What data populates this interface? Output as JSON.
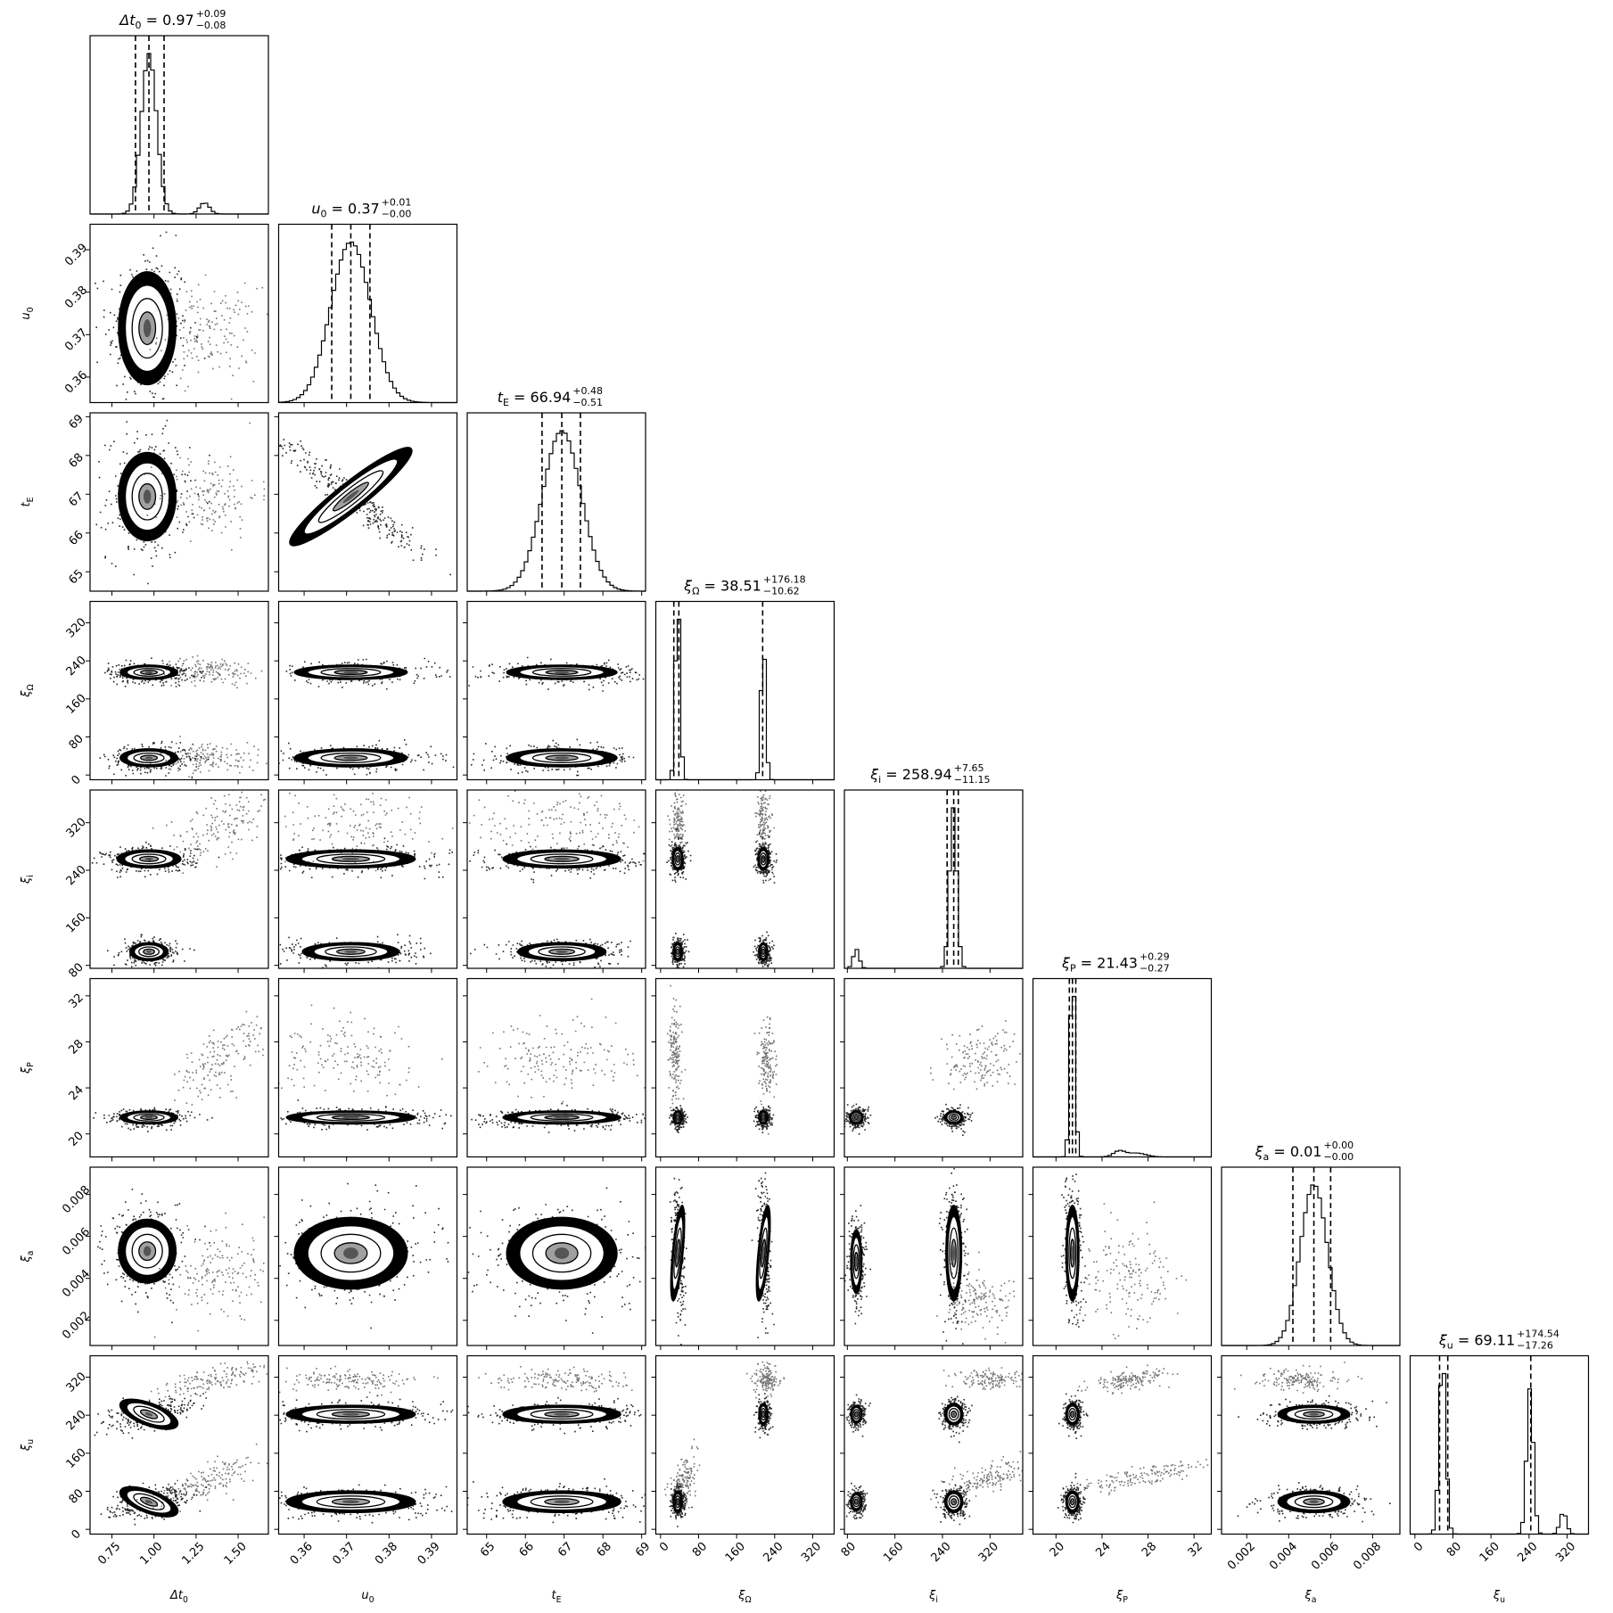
{
  "chart_data": {
    "type": "corner",
    "parameters": [
      {
        "id": "dt0",
        "label": "Δt₀",
        "range": [
          0.62,
          1.68
        ],
        "ticks": [
          0.75,
          1.0,
          1.25,
          1.5
        ],
        "tick_labels": [
          "0.75",
          "1.00",
          "1.25",
          "1.50"
        ],
        "title": {
          "name": "Δt₀",
          "value": "0.97",
          "plus": "+0.09",
          "minus": "−0.08"
        },
        "quantiles": [
          0.89,
          0.97,
          1.06
        ]
      },
      {
        "id": "u0",
        "label": "u₀",
        "range": [
          0.354,
          0.396
        ],
        "ticks": [
          0.36,
          0.37,
          0.38,
          0.39
        ],
        "tick_labels": [
          "0.36",
          "0.37",
          "0.38",
          "0.39"
        ],
        "title": {
          "name": "u₀",
          "value": "0.37",
          "plus": "+0.01",
          "minus": "−0.00"
        },
        "quantiles": [
          0.3665,
          0.371,
          0.3755
        ]
      },
      {
        "id": "tE",
        "label": "t_E",
        "range": [
          64.5,
          69.1
        ],
        "ticks": [
          65,
          66,
          67,
          68,
          69
        ],
        "tick_labels": [
          "65",
          "66",
          "67",
          "68",
          "69"
        ],
        "title": {
          "name": "t_E",
          "value": "66.94",
          "plus": "+0.48",
          "minus": "−0.51"
        },
        "quantiles": [
          66.43,
          66.94,
          67.42
        ]
      },
      {
        "id": "xiOmega",
        "label": "ξ_Ω",
        "range": [
          -10,
          365
        ],
        "ticks": [
          0,
          80,
          160,
          240,
          320
        ],
        "tick_labels": [
          "0",
          "80",
          "160",
          "240",
          "320"
        ],
        "title": {
          "name": "ξ_Ω",
          "value": "38.51",
          "plus": "+176.18",
          "minus": "−10.62"
        },
        "quantiles": [
          27.9,
          38.5,
          214.7
        ]
      },
      {
        "id": "xii",
        "label": "ξ_i",
        "range": [
          75,
          375
        ],
        "ticks": [
          80,
          160,
          240,
          320
        ],
        "tick_labels": [
          "80",
          "160",
          "240",
          "320"
        ],
        "title": {
          "name": "ξ_i",
          "value": "258.94",
          "plus": "+7.65",
          "minus": "−11.15"
        },
        "quantiles": [
          247.8,
          258.9,
          266.6
        ]
      },
      {
        "id": "xiP",
        "label": "ξ_P",
        "range": [
          18,
          33.5
        ],
        "ticks": [
          20,
          24,
          28,
          32
        ],
        "tick_labels": [
          "20",
          "24",
          "28",
          "32"
        ],
        "title": {
          "name": "ξ_P",
          "value": "21.43",
          "plus": "+0.29",
          "minus": "−0.27"
        },
        "quantiles": [
          21.16,
          21.43,
          21.72
        ]
      },
      {
        "id": "xia",
        "label": "ξ_a",
        "range": [
          0.0008,
          0.0093
        ],
        "ticks": [
          0.002,
          0.004,
          0.006,
          0.008
        ],
        "tick_labels": [
          "0.002",
          "0.004",
          "0.006",
          "0.008"
        ],
        "title": {
          "name": "ξ_a",
          "value": "0.01",
          "plus": "+0.00",
          "minus": "−0.00"
        },
        "quantiles": [
          0.0042,
          0.0052,
          0.006
        ]
      },
      {
        "id": "xiu",
        "label": "ξ_u",
        "range": [
          -10,
          365
        ],
        "ticks": [
          0,
          80,
          160,
          240,
          320
        ],
        "tick_labels": [
          "0",
          "80",
          "160",
          "240",
          "320"
        ],
        "title": {
          "name": "ξ_u",
          "value": "69.11",
          "plus": "+174.54",
          "minus": "−17.26"
        },
        "quantiles": [
          51.85,
          69.11,
          243.65
        ]
      }
    ],
    "histograms": [
      {
        "param": "dt0",
        "peaks": [
          [
            0.97,
            0.045,
            1.0
          ],
          [
            1.3,
            0.03,
            0.07
          ]
        ]
      },
      {
        "param": "u0",
        "peaks": [
          [
            0.371,
            0.0047,
            1.0
          ]
        ]
      },
      {
        "param": "tE",
        "peaks": [
          [
            66.94,
            0.5,
            1.0
          ]
        ]
      },
      {
        "param": "xiOmega",
        "peaks": [
          [
            36,
            5,
            1.0
          ],
          [
            216,
            5,
            0.75
          ]
        ]
      },
      {
        "param": "xii",
        "peaks": [
          [
            258,
            6,
            1.0
          ],
          [
            95,
            5,
            0.12
          ]
        ]
      },
      {
        "param": "xiP",
        "peaks": [
          [
            21.43,
            0.22,
            1.0
          ],
          [
            25.5,
            0.5,
            0.03
          ],
          [
            27,
            0.8,
            0.02
          ]
        ]
      },
      {
        "param": "xia",
        "peaks": [
          [
            0.0052,
            0.00065,
            1.0
          ]
        ]
      },
      {
        "param": "xiu",
        "peaks": [
          [
            58,
            7,
            0.98
          ],
          [
            242,
            7,
            0.8
          ],
          [
            312,
            7,
            0.12
          ]
        ]
      }
    ],
    "clusters": [
      {
        "pair": "u0|dt0",
        "items": [
          {
            "x": 0.96,
            "y": 0.3715,
            "sx": 0.09,
            "sy": 0.007,
            "rho": 0.0
          },
          {
            "x": 1.32,
            "y": 0.3705,
            "sx": 0.11,
            "sy": 0.004,
            "rho": 0.0,
            "tail": true
          }
        ]
      },
      {
        "pair": "tE|dt0",
        "items": [
          {
            "x": 0.96,
            "y": 66.94,
            "sx": 0.09,
            "sy": 0.6,
            "rho": 0.0
          },
          {
            "x": 1.32,
            "y": 67.0,
            "sx": 0.11,
            "sy": 0.4,
            "rho": 0.0,
            "tail": true
          }
        ]
      },
      {
        "pair": "tE|u0",
        "items": [
          {
            "x": 0.371,
            "y": 66.94,
            "sx": 0.0075,
            "sy": 0.65,
            "rho": -0.97
          }
        ]
      },
      {
        "pair": "xiOmega|dt0",
        "items": [
          {
            "x": 0.97,
            "y": 36,
            "sx": 0.09,
            "sy": 10,
            "rho": 0.0
          },
          {
            "x": 0.97,
            "y": 216,
            "sx": 0.09,
            "sy": 8,
            "rho": 0.0
          },
          {
            "x": 1.32,
            "y": 38,
            "sx": 0.11,
            "sy": 12,
            "rho": 0.0,
            "tail": true
          },
          {
            "x": 1.32,
            "y": 220,
            "sx": 0.11,
            "sy": 10,
            "rho": 0.0,
            "tail": true
          }
        ]
      },
      {
        "pair": "xiOmega|u0",
        "items": [
          {
            "x": 0.371,
            "y": 36,
            "sx": 0.007,
            "sy": 10,
            "rho": 0.0
          },
          {
            "x": 0.371,
            "y": 216,
            "sx": 0.007,
            "sy": 8,
            "rho": 0.0
          }
        ]
      },
      {
        "pair": "xiOmega|tE",
        "items": [
          {
            "x": 66.94,
            "y": 36,
            "sx": 0.75,
            "sy": 10,
            "rho": 0.0
          },
          {
            "x": 66.94,
            "y": 216,
            "sx": 0.75,
            "sy": 8,
            "rho": 0.0
          }
        ]
      },
      {
        "pair": "xii|dt0",
        "items": [
          {
            "x": 0.97,
            "y": 259,
            "sx": 0.1,
            "sy": 8,
            "rho": 0.0
          },
          {
            "x": 0.97,
            "y": 103,
            "sx": 0.06,
            "sy": 8,
            "rho": 0.0
          },
          {
            "x": 1.4,
            "y": 320,
            "sx": 0.12,
            "sy": 25,
            "rho": 0.6,
            "tail": true
          }
        ]
      },
      {
        "pair": "xii|u0",
        "items": [
          {
            "x": 0.371,
            "y": 259,
            "sx": 0.008,
            "sy": 8,
            "rho": 0.0
          },
          {
            "x": 0.371,
            "y": 103,
            "sx": 0.006,
            "sy": 8,
            "rho": 0.0
          },
          {
            "x": 0.371,
            "y": 320,
            "sx": 0.008,
            "sy": 25,
            "rho": 0.0,
            "tail": true
          }
        ]
      },
      {
        "pair": "xii|tE",
        "items": [
          {
            "x": 66.94,
            "y": 259,
            "sx": 0.8,
            "sy": 8,
            "rho": 0.0
          },
          {
            "x": 66.94,
            "y": 103,
            "sx": 0.6,
            "sy": 8,
            "rho": 0.0
          },
          {
            "x": 66.94,
            "y": 320,
            "sx": 0.8,
            "sy": 25,
            "rho": 0.0,
            "tail": true
          }
        ]
      },
      {
        "pair": "xii|xiOmega",
        "items": [
          {
            "x": 36,
            "y": 259,
            "sx": 6,
            "sy": 10,
            "rho": 0.0
          },
          {
            "x": 216,
            "y": 259,
            "sx": 6,
            "sy": 10,
            "rho": 0.0
          },
          {
            "x": 36,
            "y": 103,
            "sx": 5,
            "sy": 8,
            "rho": 0.0
          },
          {
            "x": 216,
            "y": 103,
            "sx": 5,
            "sy": 8,
            "rho": 0.0
          },
          {
            "x": 36,
            "y": 320,
            "sx": 6,
            "sy": 25,
            "rho": 0.0,
            "tail": true
          },
          {
            "x": 216,
            "y": 320,
            "sx": 6,
            "sy": 25,
            "rho": 0.0,
            "tail": true
          }
        ]
      },
      {
        "pair": "xiP|dt0",
        "items": [
          {
            "x": 0.97,
            "y": 21.43,
            "sx": 0.09,
            "sy": 0.3,
            "rho": 0.0
          },
          {
            "x": 1.38,
            "y": 26.5,
            "sx": 0.1,
            "sy": 1.3,
            "rho": 0.6,
            "tail": true
          }
        ]
      },
      {
        "pair": "xiP|u0",
        "items": [
          {
            "x": 0.371,
            "y": 21.43,
            "sx": 0.008,
            "sy": 0.3,
            "rho": 0.0
          },
          {
            "x": 0.371,
            "y": 26.5,
            "sx": 0.007,
            "sy": 1.2,
            "rho": 0.0,
            "tail": true
          }
        ]
      },
      {
        "pair": "xiP|tE",
        "items": [
          {
            "x": 66.94,
            "y": 21.43,
            "sx": 0.8,
            "sy": 0.3,
            "rho": 0.0
          },
          {
            "x": 66.94,
            "y": 26.5,
            "sx": 0.7,
            "sy": 1.2,
            "rho": 0.0,
            "tail": true
          }
        ]
      },
      {
        "pair": "xiP|xiOmega",
        "items": [
          {
            "x": 36,
            "y": 21.43,
            "sx": 5,
            "sy": 0.3,
            "rho": 0.0
          },
          {
            "x": 216,
            "y": 21.43,
            "sx": 5,
            "sy": 0.3,
            "rho": 0.0
          },
          {
            "x": 30,
            "y": 27,
            "sx": 5,
            "sy": 1.5,
            "rho": 0.0,
            "tail": true
          },
          {
            "x": 222,
            "y": 26.5,
            "sx": 6,
            "sy": 1.2,
            "rho": 0.0,
            "tail": true
          }
        ]
      },
      {
        "pair": "xiP|xii",
        "items": [
          {
            "x": 259,
            "y": 21.43,
            "sx": 8,
            "sy": 0.3,
            "rho": 0.0
          },
          {
            "x": 95,
            "y": 21.43,
            "sx": 6,
            "sy": 0.3,
            "rho": 0.0
          },
          {
            "x": 300,
            "y": 26.5,
            "sx": 25,
            "sy": 1.0,
            "rho": 0.3,
            "tail": true
          }
        ]
      },
      {
        "pair": "xia|dt0",
        "items": [
          {
            "x": 0.96,
            "y": 0.0053,
            "sx": 0.09,
            "sy": 0.0008,
            "rho": 0.0
          },
          {
            "x": 1.38,
            "y": 0.0042,
            "sx": 0.11,
            "sy": 0.0008,
            "rho": 0.3,
            "tail": true
          }
        ]
      },
      {
        "pair": "xia|u0",
        "items": [
          {
            "x": 0.371,
            "y": 0.0052,
            "sx": 0.007,
            "sy": 0.0009,
            "rho": 0.0
          }
        ]
      },
      {
        "pair": "xia|tE",
        "items": [
          {
            "x": 66.94,
            "y": 0.0052,
            "sx": 0.75,
            "sy": 0.0009,
            "rho": 0.0
          }
        ]
      },
      {
        "pair": "xia|xiOmega",
        "items": [
          {
            "x": 36,
            "y": 0.0052,
            "sx": 5,
            "sy": 0.0012,
            "rho": -0.2
          },
          {
            "x": 216,
            "y": 0.0052,
            "sx": 5,
            "sy": 0.0012,
            "rho": -0.2
          }
        ]
      },
      {
        "pair": "xia|xii",
        "items": [
          {
            "x": 259,
            "y": 0.0052,
            "sx": 7,
            "sy": 0.0012,
            "rho": 0.0
          },
          {
            "x": 95,
            "y": 0.0048,
            "sx": 5,
            "sy": 0.0008,
            "rho": 0.0
          },
          {
            "x": 300,
            "y": 0.003,
            "sx": 25,
            "sy": 0.0005,
            "rho": 0.0,
            "tail": true
          }
        ]
      },
      {
        "pair": "xia|xiP",
        "items": [
          {
            "x": 21.43,
            "y": 0.0052,
            "sx": 0.3,
            "sy": 0.0012,
            "rho": 0.0
          },
          {
            "x": 26.5,
            "y": 0.0042,
            "sx": 1.5,
            "sy": 0.0009,
            "rho": 0.0,
            "tail": true
          }
        ]
      },
      {
        "pair": "xiu|dt0",
        "items": [
          {
            "x": 0.97,
            "y": 58,
            "sx": 0.09,
            "sy": 12,
            "rho": 0.5
          },
          {
            "x": 0.97,
            "y": 242,
            "sx": 0.09,
            "sy": 12,
            "rho": 0.5
          },
          {
            "x": 1.35,
            "y": 316,
            "sx": 0.15,
            "sy": 18,
            "rho": 0.8,
            "tail": true
          },
          {
            "x": 1.3,
            "y": 100,
            "sx": 0.12,
            "sy": 20,
            "rho": 0.8,
            "tail": true
          }
        ]
      },
      {
        "pair": "xiu|u0",
        "items": [
          {
            "x": 0.371,
            "y": 58,
            "sx": 0.008,
            "sy": 12,
            "rho": 0.0
          },
          {
            "x": 0.371,
            "y": 242,
            "sx": 0.008,
            "sy": 10,
            "rho": 0.0
          },
          {
            "x": 0.371,
            "y": 316,
            "sx": 0.007,
            "sy": 8,
            "rho": 0.0,
            "tail": true
          }
        ]
      },
      {
        "pair": "xiu|tE",
        "items": [
          {
            "x": 66.94,
            "y": 58,
            "sx": 0.8,
            "sy": 12,
            "rho": 0.0
          },
          {
            "x": 66.94,
            "y": 242,
            "sx": 0.8,
            "sy": 10,
            "rho": 0.0
          },
          {
            "x": 66.94,
            "y": 316,
            "sx": 0.7,
            "sy": 8,
            "rho": 0.0,
            "tail": true
          }
        ]
      },
      {
        "pair": "xiu|xiOmega",
        "items": [
          {
            "x": 36,
            "y": 58,
            "sx": 5,
            "sy": 12,
            "rho": 0.0
          },
          {
            "x": 216,
            "y": 242,
            "sx": 5,
            "sy": 12,
            "rho": 0.0
          },
          {
            "x": 45,
            "y": 100,
            "sx": 10,
            "sy": 20,
            "rho": 0.5,
            "tail": true
          },
          {
            "x": 220,
            "y": 316,
            "sx": 10,
            "sy": 12,
            "rho": 0.0,
            "tail": true
          }
        ]
      },
      {
        "pair": "xiu|xii",
        "items": [
          {
            "x": 259,
            "y": 58,
            "sx": 8,
            "sy": 12,
            "rho": 0.0
          },
          {
            "x": 259,
            "y": 242,
            "sx": 8,
            "sy": 12,
            "rho": 0.0
          },
          {
            "x": 95,
            "y": 58,
            "sx": 5,
            "sy": 10,
            "rho": 0.0
          },
          {
            "x": 95,
            "y": 242,
            "sx": 5,
            "sy": 10,
            "rho": 0.0
          },
          {
            "x": 320,
            "y": 316,
            "sx": 25,
            "sy": 8,
            "rho": 0.0,
            "tail": true
          },
          {
            "x": 320,
            "y": 110,
            "sx": 30,
            "sy": 15,
            "rho": 0.6,
            "tail": true
          }
        ]
      },
      {
        "pair": "xiu|xiP",
        "items": [
          {
            "x": 21.43,
            "y": 58,
            "sx": 0.3,
            "sy": 12,
            "rho": 0.0
          },
          {
            "x": 21.43,
            "y": 242,
            "sx": 0.3,
            "sy": 12,
            "rho": 0.0
          },
          {
            "x": 26.5,
            "y": 316,
            "sx": 1.2,
            "sy": 8,
            "rho": 0.5,
            "tail": true
          },
          {
            "x": 27,
            "y": 110,
            "sx": 2,
            "sy": 12,
            "rho": 0.8,
            "tail": true
          }
        ]
      },
      {
        "pair": "xiu|xia",
        "items": [
          {
            "x": 0.0052,
            "y": 58,
            "sx": 0.0009,
            "sy": 12,
            "rho": 0.0
          },
          {
            "x": 0.0052,
            "y": 242,
            "sx": 0.0009,
            "sy": 10,
            "rho": 0.0
          },
          {
            "x": 0.0045,
            "y": 316,
            "sx": 0.0008,
            "sy": 8,
            "rho": 0.0,
            "tail": true
          }
        ]
      }
    ]
  }
}
